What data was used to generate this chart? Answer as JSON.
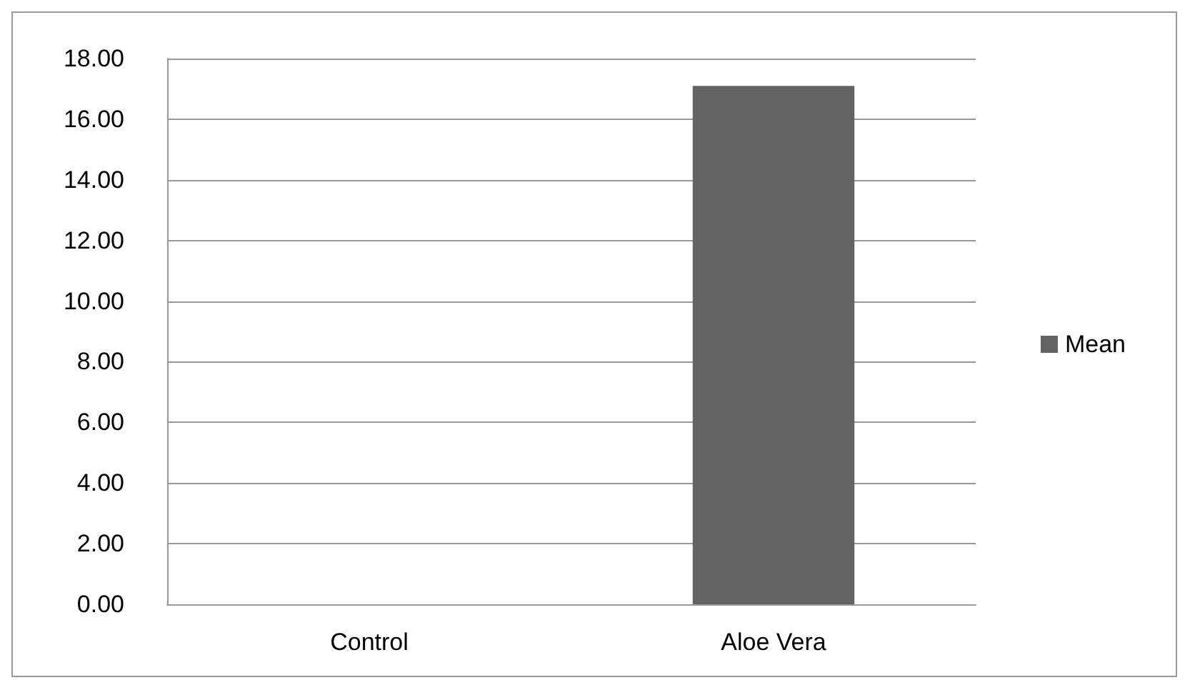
{
  "chart_data": {
    "type": "bar",
    "categories": [
      "Control",
      "Aloe Vera"
    ],
    "series": [
      {
        "name": "Mean",
        "color": "#636363",
        "values": [
          0,
          17.1
        ]
      }
    ],
    "ylim": [
      0,
      18
    ],
    "yticks": [
      {
        "value": 0,
        "label": "0.00"
      },
      {
        "value": 2,
        "label": "2.00"
      },
      {
        "value": 4,
        "label": "4.00"
      },
      {
        "value": 6,
        "label": "6.00"
      },
      {
        "value": 8,
        "label": "8.00"
      },
      {
        "value": 10,
        "label": "10.00"
      },
      {
        "value": 12,
        "label": "12.00"
      },
      {
        "value": 14,
        "label": "14.00"
      },
      {
        "value": 16,
        "label": "16.00"
      },
      {
        "value": 18,
        "label": "18.00"
      }
    ],
    "grid": "y",
    "legend": "right"
  }
}
